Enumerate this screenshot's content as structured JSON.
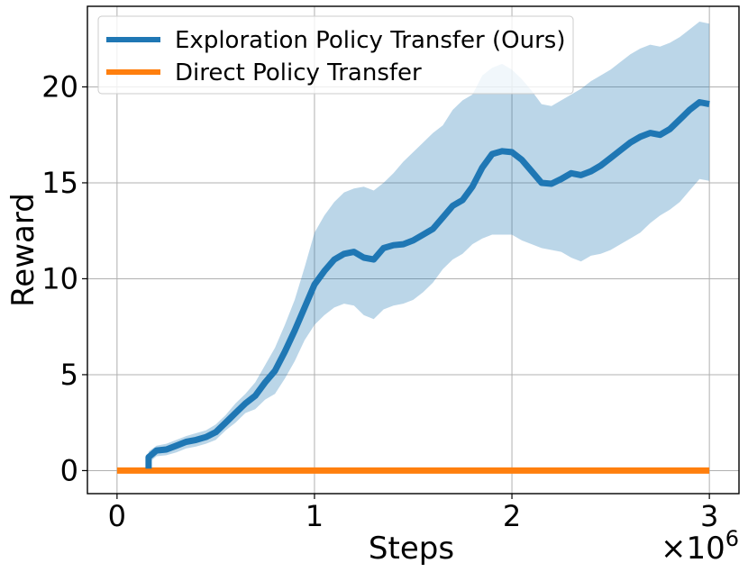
{
  "chart_data": {
    "type": "line",
    "title": "",
    "xlabel": "Steps",
    "ylabel": "Reward",
    "x_multiplier_label": "×10",
    "x_multiplier_exponent": "6",
    "xlim": [
      -0.15,
      3.15
    ],
    "ylim": [
      -1.2,
      24.2
    ],
    "x_ticks": [
      0,
      1,
      2,
      3
    ],
    "x_tick_labels": [
      "0",
      "1",
      "2",
      "3"
    ],
    "y_ticks": [
      0,
      5,
      10,
      15,
      20
    ],
    "y_tick_labels": [
      "0",
      "5",
      "10",
      "15",
      "20"
    ],
    "grid": true,
    "legend_position": "upper-left",
    "series": [
      {
        "name": "Exploration Policy Transfer (Ours)",
        "color": "#1f77b4",
        "band_color": "#1f77b4",
        "x": [
          0.16,
          0.16,
          0.2,
          0.25,
          0.3,
          0.35,
          0.4,
          0.45,
          0.5,
          0.55,
          0.6,
          0.65,
          0.7,
          0.75,
          0.8,
          0.85,
          0.9,
          0.95,
          1.0,
          1.05,
          1.1,
          1.15,
          1.2,
          1.25,
          1.3,
          1.35,
          1.4,
          1.45,
          1.5,
          1.55,
          1.6,
          1.65,
          1.7,
          1.75,
          1.8,
          1.85,
          1.9,
          1.95,
          2.0,
          2.05,
          2.1,
          2.15,
          2.2,
          2.25,
          2.3,
          2.35,
          2.4,
          2.45,
          2.5,
          2.55,
          2.6,
          2.65,
          2.7,
          2.75,
          2.8,
          2.85,
          2.9,
          2.95,
          3.0
        ],
        "y": [
          0.1,
          0.7,
          1.05,
          1.1,
          1.3,
          1.5,
          1.6,
          1.75,
          2.0,
          2.5,
          3.0,
          3.5,
          3.9,
          4.6,
          5.2,
          6.2,
          7.3,
          8.5,
          9.7,
          10.4,
          11.0,
          11.3,
          11.4,
          11.1,
          11.0,
          11.6,
          11.75,
          11.8,
          12.0,
          12.3,
          12.6,
          13.2,
          13.8,
          14.1,
          14.8,
          15.8,
          16.5,
          16.65,
          16.6,
          16.2,
          15.6,
          15.0,
          14.95,
          15.2,
          15.5,
          15.4,
          15.6,
          15.9,
          16.3,
          16.7,
          17.1,
          17.4,
          17.6,
          17.5,
          17.8,
          18.3,
          18.8,
          19.2,
          19.1
        ],
        "upper": [
          0.1,
          1.0,
          1.3,
          1.4,
          1.6,
          1.8,
          1.95,
          2.1,
          2.4,
          2.9,
          3.5,
          4.0,
          4.6,
          5.5,
          6.4,
          7.6,
          8.9,
          10.6,
          12.4,
          13.3,
          14.0,
          14.5,
          14.7,
          14.8,
          14.6,
          15.0,
          15.5,
          16.1,
          16.6,
          17.1,
          17.6,
          18.0,
          18.8,
          19.3,
          19.6,
          20.6,
          21.0,
          21.2,
          20.9,
          20.4,
          19.8,
          19.1,
          19.0,
          19.3,
          19.6,
          19.9,
          20.3,
          20.6,
          20.9,
          21.3,
          21.7,
          22.0,
          22.2,
          22.1,
          22.3,
          22.6,
          23.0,
          23.4,
          23.3
        ],
        "lower": [
          0.1,
          0.4,
          0.75,
          0.8,
          0.95,
          1.15,
          1.25,
          1.4,
          1.6,
          2.1,
          2.5,
          3.0,
          3.2,
          3.7,
          4.0,
          4.8,
          5.7,
          6.8,
          7.6,
          8.1,
          8.5,
          8.7,
          8.6,
          8.1,
          7.9,
          8.4,
          8.6,
          8.7,
          8.9,
          9.3,
          9.8,
          10.5,
          11.0,
          11.3,
          11.8,
          12.1,
          12.3,
          12.3,
          12.3,
          12.0,
          11.8,
          11.6,
          11.5,
          11.4,
          11.1,
          10.9,
          11.2,
          11.3,
          11.5,
          11.8,
          12.1,
          12.4,
          12.9,
          13.3,
          13.6,
          14.0,
          14.6,
          15.2,
          15.1
        ]
      },
      {
        "name": "Direct Policy Transfer",
        "color": "#ff7f0e",
        "x": [
          0,
          3.0
        ],
        "y": [
          0,
          0
        ]
      }
    ]
  }
}
